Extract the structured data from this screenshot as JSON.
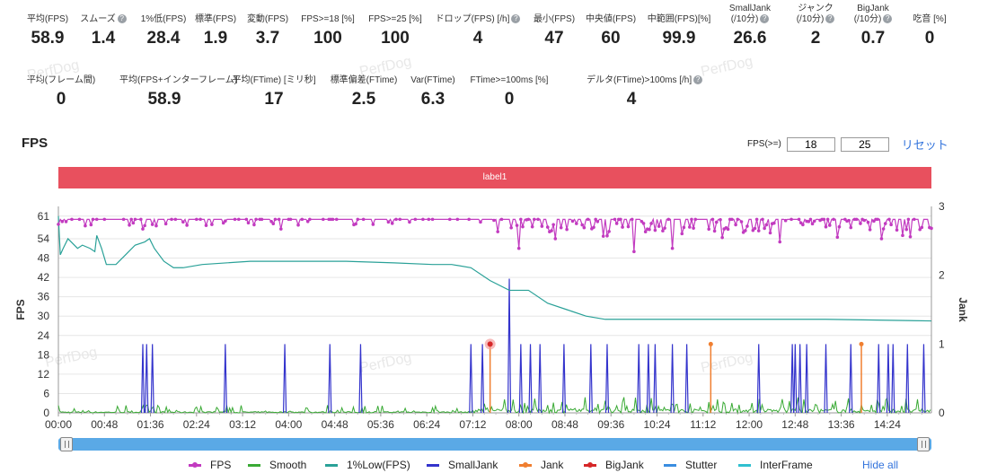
{
  "stats_row1": [
    {
      "label": "平均(FPS)",
      "value": "58.9",
      "help": false
    },
    {
      "label": "スムーズ",
      "value": "1.4",
      "help": true
    },
    {
      "label": "1%低(FPS)",
      "value": "28.4",
      "help": false
    },
    {
      "label": "標準(FPS)",
      "value": "1.9",
      "help": false
    },
    {
      "label": "変動(FPS)",
      "value": "3.7",
      "help": false
    },
    {
      "label": "FPS>=18 [%]",
      "value": "100",
      "help": false
    },
    {
      "label": "FPS>=25 [%]",
      "value": "100",
      "help": false
    },
    {
      "label": "ドロップ(FPS) [/h]",
      "value": "4",
      "help": true
    },
    {
      "label": "最小(FPS)",
      "value": "47",
      "help": false
    },
    {
      "label": "中央値(FPS)",
      "value": "60",
      "help": false
    },
    {
      "label": "中範囲(FPS)[%]",
      "value": "99.9",
      "help": false
    },
    {
      "label": "SmallJank\n(/10分)",
      "value": "26.6",
      "help": true
    },
    {
      "label": "ジャンク\n(/10分)",
      "value": "2",
      "help": true
    },
    {
      "label": "BigJank\n(/10分)",
      "value": "0.7",
      "help": true
    },
    {
      "label": "吃音 [%]",
      "value": "0",
      "help": false
    }
  ],
  "stats_row2": [
    {
      "label": "平均(フレーム間)",
      "value": "0",
      "help": false
    },
    {
      "label": "平均(FPS+インターフレーム)",
      "value": "58.9",
      "help": false
    },
    {
      "label": "平均(FTime) [ミリ秒]",
      "value": "17",
      "help": false
    },
    {
      "label": "標準偏差(FTime)",
      "value": "2.5",
      "help": false
    },
    {
      "label": "Var(FTime)",
      "value": "6.3",
      "help": false
    },
    {
      "label": "FTime>=100ms [%]",
      "value": "0",
      "help": false
    },
    {
      "label": "デルタ(FTime)>100ms [/h]",
      "value": "4",
      "help": true
    }
  ],
  "watermark": "PerfDog",
  "chart_header": {
    "title": "FPS",
    "fps_threshold_label": "FPS(>=)",
    "fps_threshold_1": "18",
    "fps_threshold_2": "25",
    "reset": "リセット"
  },
  "label_bar": "label1",
  "legend": {
    "hide_all": "Hide all"
  },
  "colors": {
    "fps": "#c23bc0",
    "smooth": "#3aaa35",
    "low1": "#2aa198",
    "smalljank": "#3333cc",
    "jank": "#f07f30",
    "bigjank": "#d62728",
    "stutter": "#3a8de0",
    "interframe": "#30c0d0",
    "label_bar": "#e8505e"
  },
  "chart_data": {
    "type": "line",
    "title": "FPS",
    "xlabel": "",
    "ylabel": "FPS",
    "y2label": "Jank",
    "ylim": [
      0,
      64
    ],
    "y2lim": [
      0,
      3
    ],
    "yticks": [
      0,
      6,
      12,
      18,
      24,
      30,
      36,
      42,
      48,
      54,
      61
    ],
    "y2ticks": [
      0,
      1,
      2,
      3
    ],
    "xlim": [
      0,
      910
    ],
    "xticks": [
      "00:00",
      "00:48",
      "01:36",
      "02:24",
      "03:12",
      "04:00",
      "04:48",
      "05:36",
      "06:24",
      "07:12",
      "08:00",
      "08:48",
      "09:36",
      "10:24",
      "11:12",
      "12:00",
      "12:48",
      "13:36",
      "14:24"
    ],
    "xtick_seconds": [
      0,
      48,
      96,
      144,
      192,
      240,
      288,
      336,
      384,
      432,
      480,
      528,
      576,
      624,
      672,
      720,
      768,
      816,
      864
    ],
    "series": [
      {
        "name": "FPS",
        "axis": "left",
        "baseline": 60,
        "drops_sparse": [
          [
            28,
            58
          ],
          [
            88,
            57
          ],
          [
            102,
            58
          ],
          [
            135,
            57
          ],
          [
            183,
            58
          ],
          [
            232,
            57
          ],
          [
            293,
            57
          ],
          [
            357,
            58
          ],
          [
            415,
            57
          ]
        ],
        "drops_dense_from": 450,
        "min_points": [
          [
            480,
            51
          ],
          [
            518,
            54
          ],
          [
            600,
            50
          ],
          [
            640,
            51
          ],
          [
            695,
            55
          ],
          [
            752,
            53
          ],
          [
            797,
            50
          ],
          [
            858,
            54
          ],
          [
            880,
            55
          ],
          [
            909,
            50
          ]
        ]
      },
      {
        "name": "Smooth",
        "axis": "left",
        "typical": 1.4,
        "max": 5
      },
      {
        "name": "1%Low(FPS)",
        "axis": "left",
        "points": [
          [
            0,
            61
          ],
          [
            2,
            49
          ],
          [
            5,
            51
          ],
          [
            10,
            54
          ],
          [
            20,
            51
          ],
          [
            25,
            52
          ],
          [
            33,
            51
          ],
          [
            38,
            50
          ],
          [
            40,
            55
          ],
          [
            45,
            51
          ],
          [
            50,
            46
          ],
          [
            60,
            46
          ],
          [
            70,
            49
          ],
          [
            80,
            52
          ],
          [
            90,
            53
          ],
          [
            95,
            54
          ],
          [
            100,
            51
          ],
          [
            110,
            47
          ],
          [
            120,
            45
          ],
          [
            130,
            45
          ],
          [
            150,
            46
          ],
          [
            200,
            47
          ],
          [
            250,
            47
          ],
          [
            300,
            47
          ],
          [
            350,
            46.5
          ],
          [
            390,
            46
          ],
          [
            410,
            46
          ],
          [
            430,
            45
          ],
          [
            450,
            41
          ],
          [
            470,
            38
          ],
          [
            490,
            38
          ],
          [
            510,
            34
          ],
          [
            530,
            32
          ],
          [
            550,
            30
          ],
          [
            570,
            29
          ],
          [
            600,
            29
          ],
          [
            700,
            29
          ],
          [
            800,
            29
          ],
          [
            910,
            28.5
          ]
        ]
      },
      {
        "name": "SmallJank",
        "axis": "right",
        "spikes": [
          [
            88,
            1
          ],
          [
            92,
            1
          ],
          [
            98,
            1
          ],
          [
            174,
            1
          ],
          [
            236,
            1
          ],
          [
            283,
            1
          ],
          [
            315,
            1
          ],
          [
            430,
            1
          ],
          [
            442,
            1
          ],
          [
            470,
            1.95
          ],
          [
            482,
            1
          ],
          [
            492,
            1
          ],
          [
            502,
            1
          ],
          [
            527,
            1
          ],
          [
            555,
            1
          ],
          [
            572,
            1
          ],
          [
            605,
            1
          ],
          [
            615,
            1
          ],
          [
            622,
            1
          ],
          [
            640,
            1
          ],
          [
            655,
            1
          ],
          [
            730,
            1
          ],
          [
            765,
            1
          ],
          [
            768,
            1
          ],
          [
            773,
            1
          ],
          [
            780,
            1
          ],
          [
            800,
            1
          ],
          [
            826,
            1
          ],
          [
            855,
            1
          ],
          [
            865,
            1
          ],
          [
            870,
            1
          ],
          [
            885,
            1
          ],
          [
            902,
            1
          ]
        ]
      },
      {
        "name": "Jank",
        "axis": "right",
        "spikes": [
          [
            450,
            1
          ],
          [
            680,
            1
          ],
          [
            837,
            1
          ]
        ]
      },
      {
        "name": "BigJank",
        "axis": "right",
        "spikes": [
          [
            450,
            1
          ]
        ]
      },
      {
        "name": "Stutter",
        "axis": "right",
        "spikes": []
      },
      {
        "name": "InterFrame",
        "axis": "right",
        "spikes": []
      }
    ]
  }
}
